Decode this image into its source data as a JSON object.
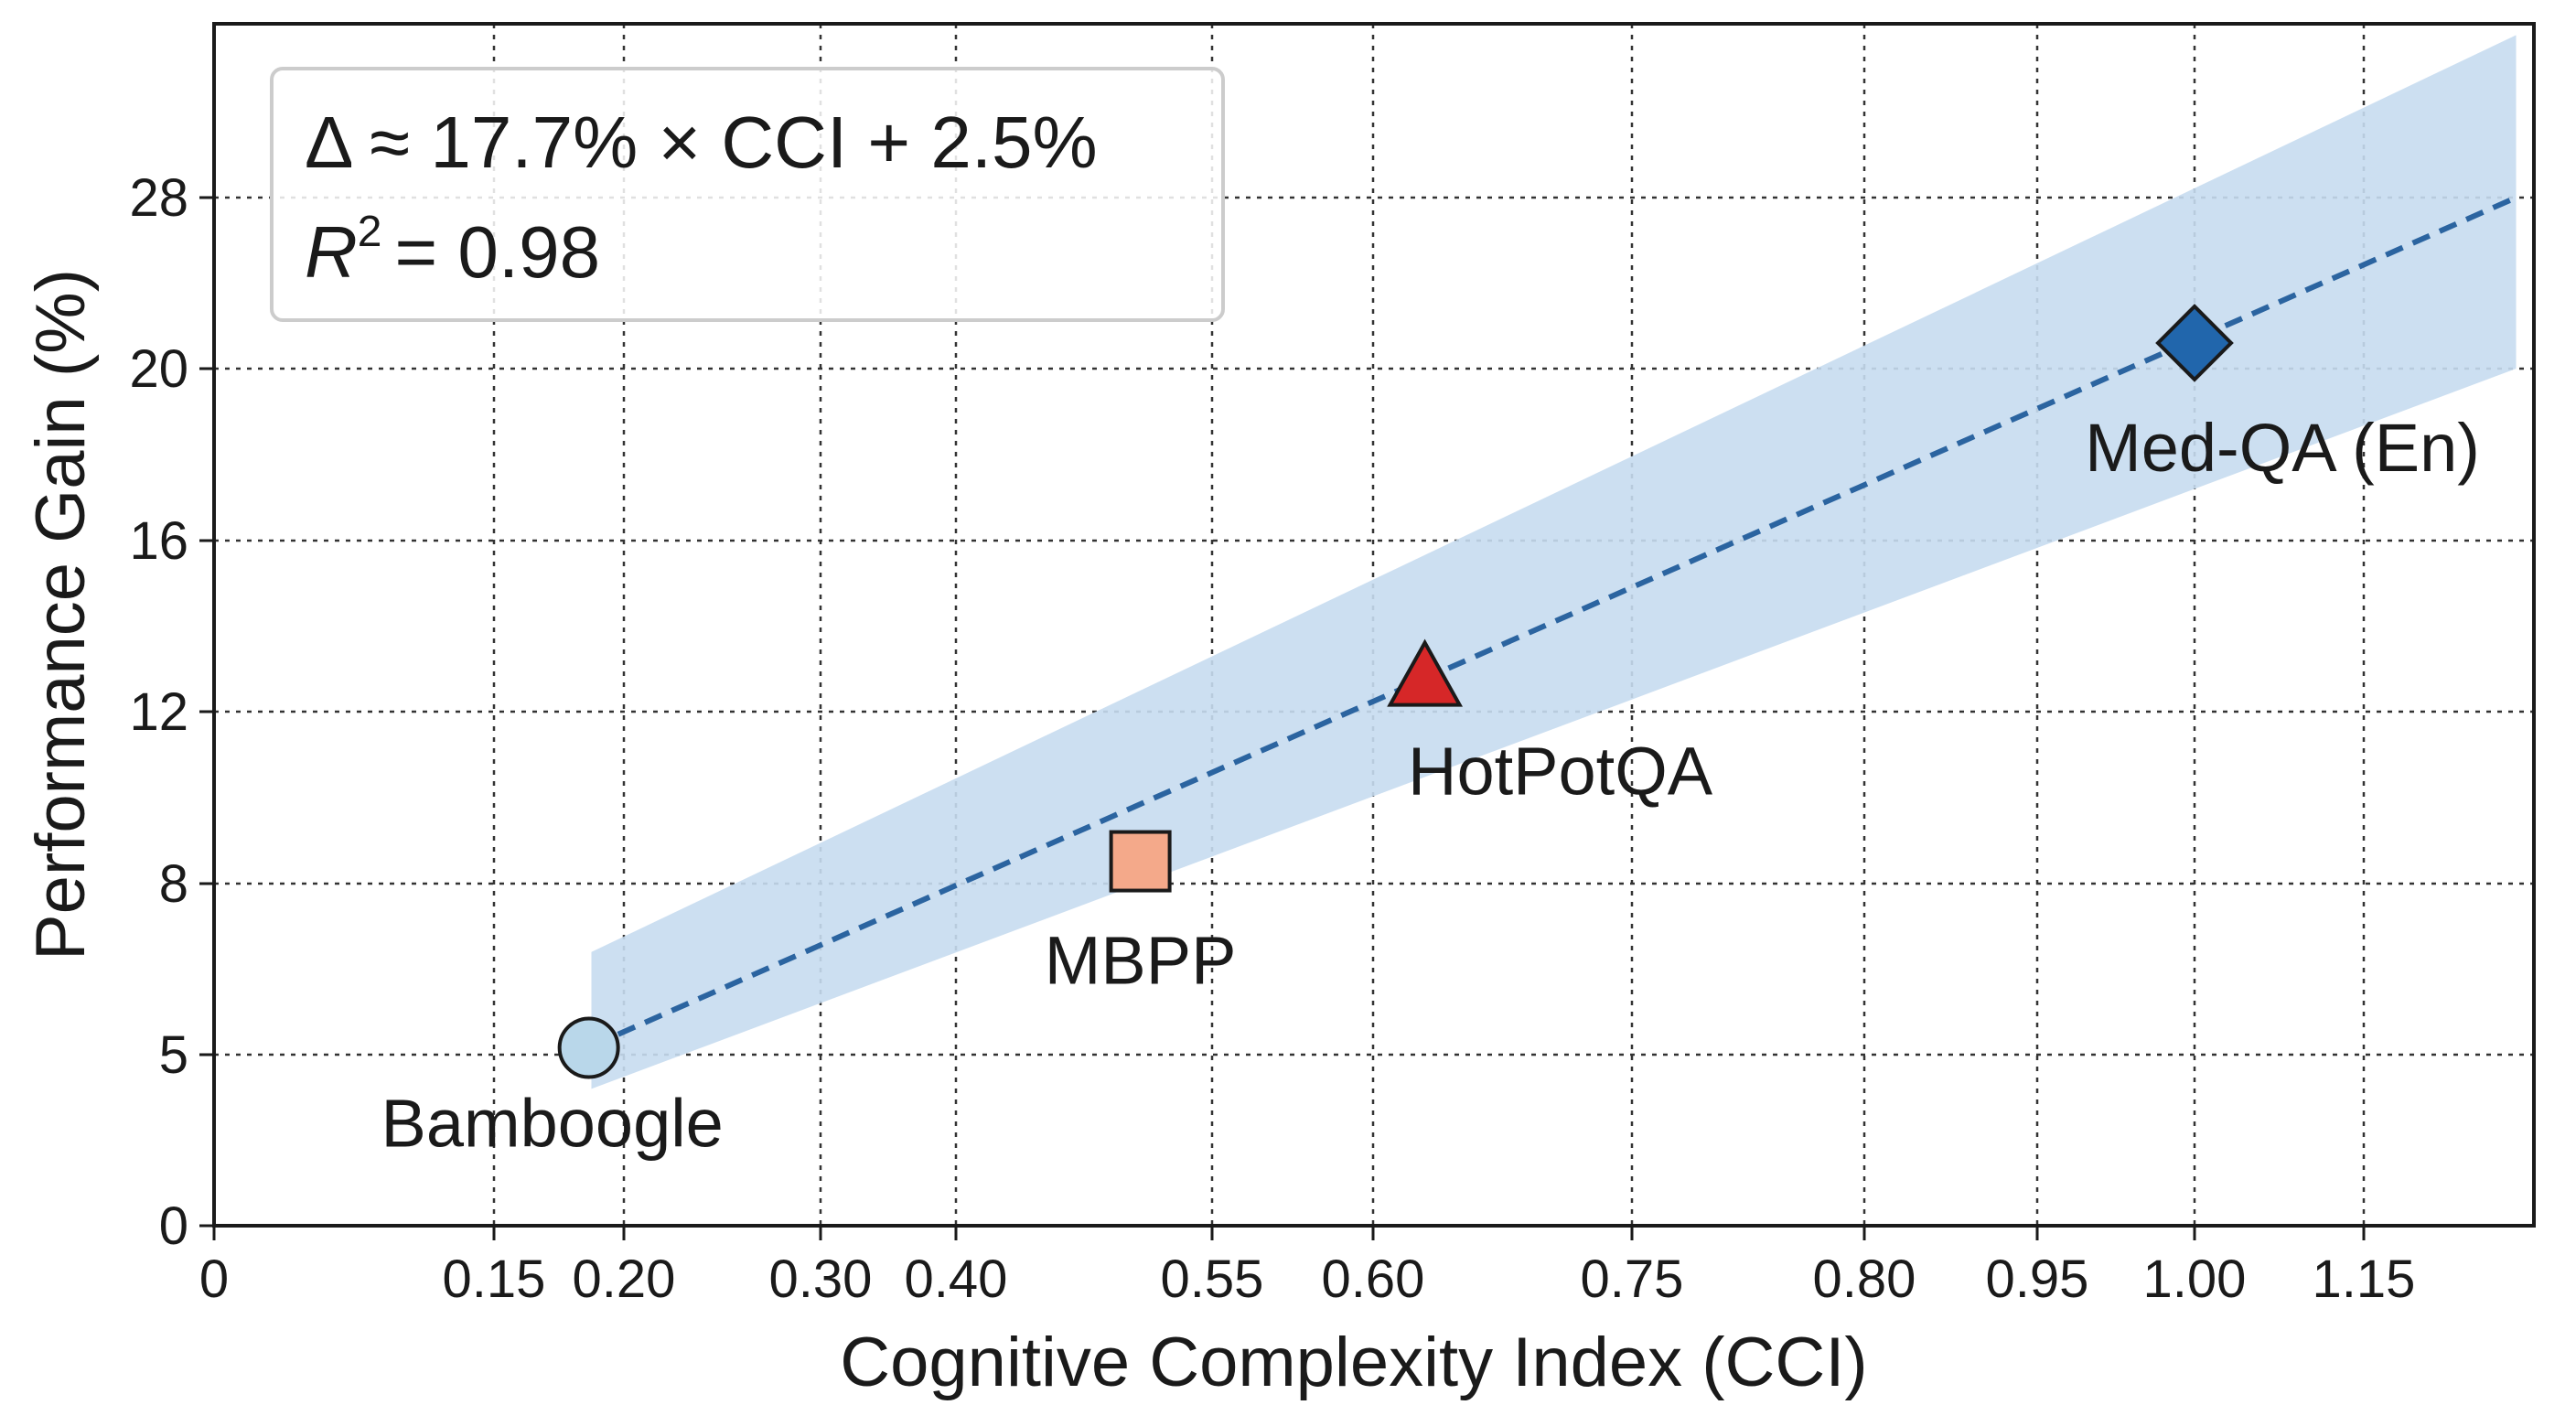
{
  "chart_data": {
    "type": "scatter",
    "title": "",
    "xlabel": "Cognitive Complexity Index (CCI)",
    "ylabel": "Performance Gain (%)",
    "x_ticks": [
      "0",
      "0.15",
      "0.20",
      "0.30",
      "0.40",
      "0.55",
      "0.60",
      "0.75",
      "0.80",
      "0.95",
      "1.00",
      "1.15"
    ],
    "y_ticks": [
      "0",
      "5",
      "8",
      "12",
      "16",
      "20",
      "28"
    ],
    "x_tick_index_max": 11.9,
    "y_tick_index_max": 6.95,
    "grid": true,
    "annotation": {
      "equation": "Δ ≈ 17.7% × CCI + 2.5%",
      "r2_symbol": "R",
      "r2_exponent": "2",
      "r2_value": "= 0.98",
      "placement": "top-left"
    },
    "fit": {
      "label": "linear fit",
      "x_start_index": 1.75,
      "x_end_index": 11.9,
      "y_start_index": 1.05,
      "y_end_index": 6.0,
      "band_start": [
        0.8,
        1.6
      ],
      "band_end": [
        5.0,
        6.95
      ],
      "color": "#2b64a0",
      "band_color": "#c6dbef"
    },
    "points": [
      {
        "label": "Bamboogle",
        "cci": 0.17,
        "gain": 5.2,
        "x_index": 1.73,
        "y_index": 1.04,
        "marker": "circle",
        "color": "#b9d7ea",
        "label_position": "below-left"
      },
      {
        "label": "MBPP",
        "cci": 0.52,
        "gain": 8.5,
        "x_index": 4.72,
        "y_index": 2.13,
        "marker": "square",
        "color": "#f4a98a",
        "label_position": "below"
      },
      {
        "label": "HotPotQA",
        "cci": 0.64,
        "gain": 12.8,
        "x_index": 6.2,
        "y_index": 3.2,
        "marker": "triangle",
        "color": "#d62728",
        "label_position": "below-right"
      },
      {
        "label": "Med-QA (En)",
        "cci": 1.0,
        "gain": 20.6,
        "x_index": 10.0,
        "y_index": 5.15,
        "marker": "diamond",
        "color": "#2166ac",
        "label_position": "below-right"
      }
    ]
  }
}
